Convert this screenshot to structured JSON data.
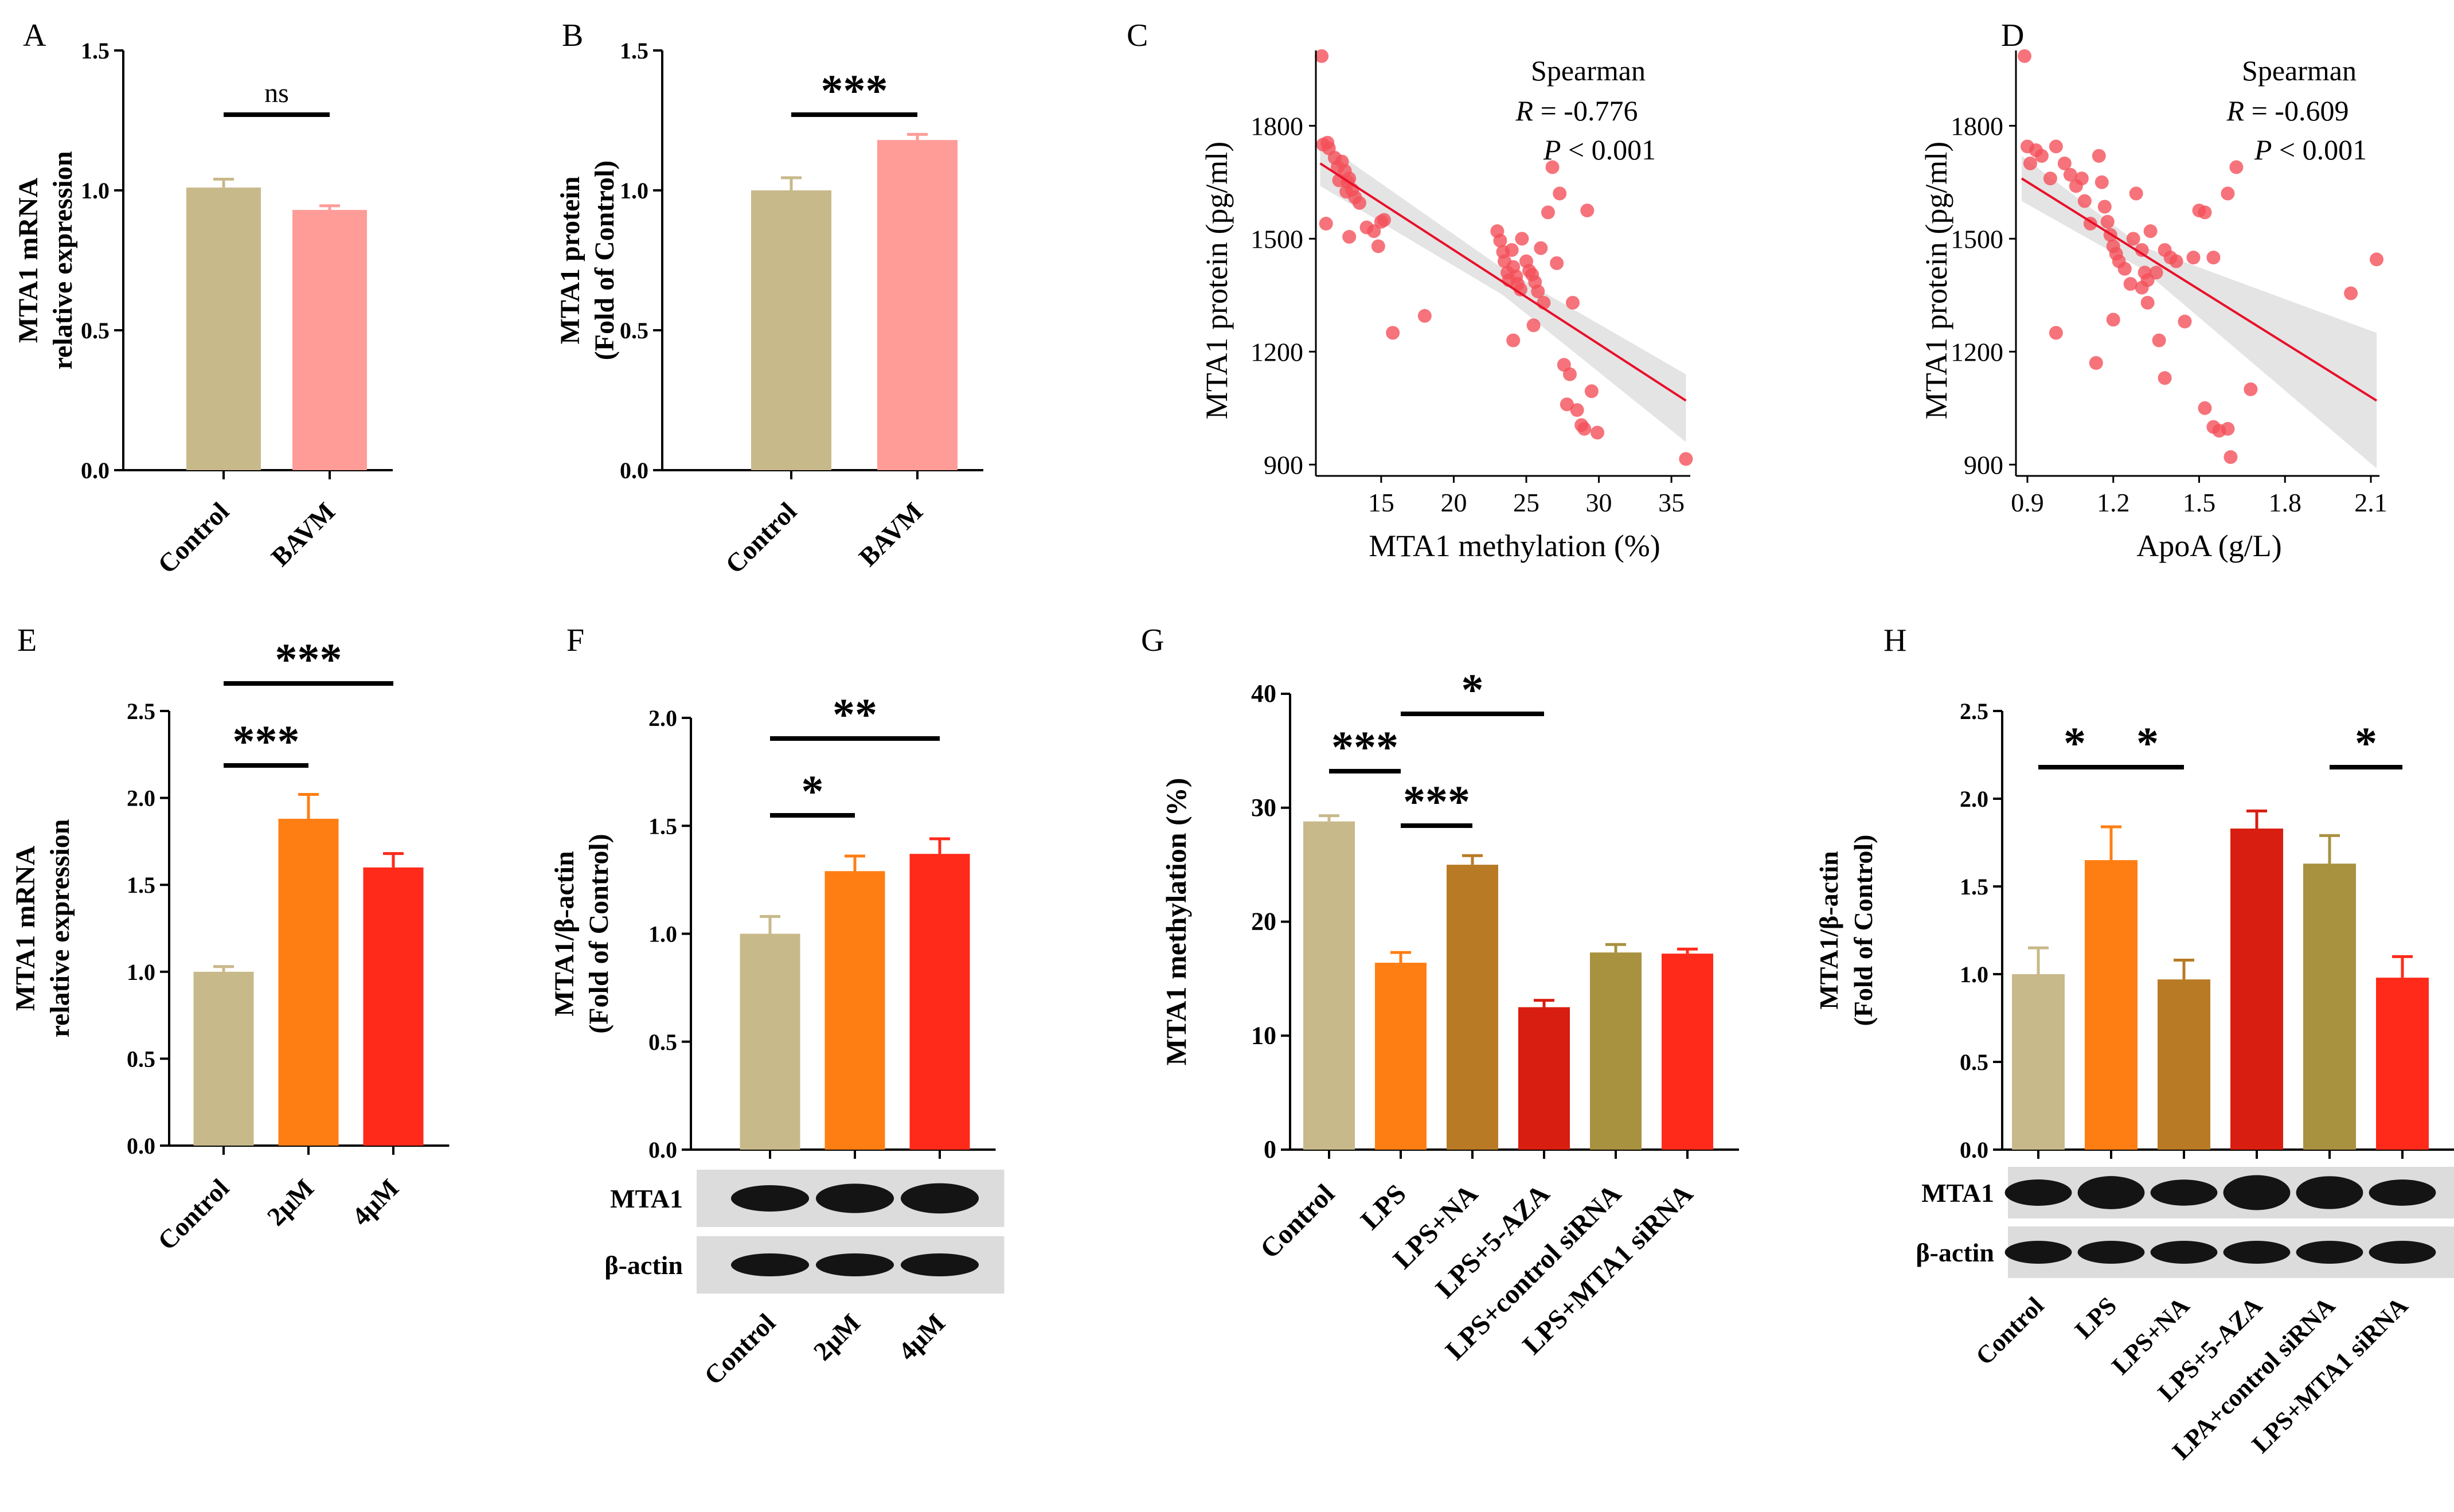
{
  "chart_data": [
    {
      "panel": "A",
      "type": "bar",
      "categories": [
        "Control",
        "BAVM"
      ],
      "values": [
        1.01,
        0.93
      ],
      "errors": [
        0.03,
        0.015
      ],
      "colors": [
        "#c8b98a",
        "#ff9c97"
      ],
      "ylabel": [
        "MTA1 mRNA",
        "relative expression"
      ],
      "ylim": [
        0,
        1.5
      ],
      "yticks": [
        "0.0",
        "0.5",
        "1.0",
        "1.5"
      ],
      "significance": [
        {
          "from": 0,
          "to": 1,
          "label": "ns"
        }
      ]
    },
    {
      "panel": "B",
      "type": "bar",
      "categories": [
        "Control",
        "BAVM"
      ],
      "values": [
        1.0,
        1.18
      ],
      "errors": [
        0.045,
        0.02
      ],
      "colors": [
        "#c8b98a",
        "#ff9c97"
      ],
      "ylabel": [
        "MTA1 protein",
        "(Fold of Control)"
      ],
      "ylim": [
        0,
        1.5
      ],
      "yticks": [
        "0.0",
        "0.5",
        "1.0",
        "1.5"
      ],
      "significance": [
        {
          "from": 0,
          "to": 1,
          "label": "***"
        }
      ]
    },
    {
      "panel": "C",
      "type": "scatter",
      "xlabel": "MTA1 methylation (%)",
      "ylabel": "MTA1 protein (pg/ml)",
      "xlim": [
        10.5,
        36.3
      ],
      "ylim": [
        870,
        2000
      ],
      "xticks": [
        15,
        20,
        25,
        30,
        35
      ],
      "yticks": [
        900,
        1200,
        1500,
        1800
      ],
      "annotation": [
        "Spearman",
        "R = -0.776",
        "P < 0.001"
      ],
      "fit": {
        "x": [
          10.8,
          36
        ],
        "y": [
          1700,
          1070
        ]
      },
      "ci": {
        "x": [
          10.8,
          23.4,
          36
        ],
        "upper": [
          1760,
          1420,
          1140
        ],
        "lower": [
          1640,
          1350,
          960
        ]
      },
      "points": [
        [
          10.9,
          1985
        ],
        [
          11.0,
          1750
        ],
        [
          11.3,
          1755
        ],
        [
          11.4,
          1740
        ],
        [
          11.8,
          1715
        ],
        [
          12.0,
          1690
        ],
        [
          12.1,
          1655
        ],
        [
          12.3,
          1705
        ],
        [
          12.5,
          1680
        ],
        [
          12.6,
          1625
        ],
        [
          12.7,
          1650
        ],
        [
          12.8,
          1660
        ],
        [
          13.0,
          1630
        ],
        [
          13.2,
          1610
        ],
        [
          13.5,
          1595
        ],
        [
          11.2,
          1540
        ],
        [
          12.8,
          1505
        ],
        [
          14.0,
          1530
        ],
        [
          14.5,
          1520
        ],
        [
          15.0,
          1545
        ],
        [
          15.2,
          1550
        ],
        [
          14.8,
          1480
        ],
        [
          15.8,
          1250
        ],
        [
          18.0,
          1295
        ],
        [
          23.0,
          1520
        ],
        [
          23.2,
          1495
        ],
        [
          23.4,
          1465
        ],
        [
          23.5,
          1440
        ],
        [
          23.7,
          1410
        ],
        [
          23.8,
          1390
        ],
        [
          24.0,
          1470
        ],
        [
          24.1,
          1425
        ],
        [
          24.3,
          1400
        ],
        [
          24.4,
          1380
        ],
        [
          24.6,
          1365
        ],
        [
          24.7,
          1500
        ],
        [
          25.0,
          1440
        ],
        [
          25.2,
          1415
        ],
        [
          25.4,
          1405
        ],
        [
          25.6,
          1385
        ],
        [
          25.8,
          1360
        ],
        [
          26.0,
          1475
        ],
        [
          26.5,
          1570
        ],
        [
          26.8,
          1690
        ],
        [
          27.3,
          1620
        ],
        [
          27.1,
          1435
        ],
        [
          26.2,
          1330
        ],
        [
          24.1,
          1230
        ],
        [
          25.5,
          1270
        ],
        [
          27.6,
          1165
        ],
        [
          28.2,
          1330
        ],
        [
          29.2,
          1575
        ],
        [
          28.0,
          1140
        ],
        [
          28.5,
          1045
        ],
        [
          28.8,
          1005
        ],
        [
          29.0,
          995
        ],
        [
          29.5,
          1095
        ],
        [
          29.9,
          985
        ],
        [
          27.8,
          1060
        ],
        [
          36.0,
          915
        ]
      ]
    },
    {
      "panel": "D",
      "type": "scatter",
      "xlabel": "ApoA (g/L)",
      "ylabel": "MTA1 protein (pg/ml)",
      "xlim": [
        0.86,
        2.13
      ],
      "ylim": [
        870,
        2000
      ],
      "xticks": [
        "0.9",
        "1.2",
        "1.5",
        "1.8",
        "2.1"
      ],
      "yticks": [
        900,
        1200,
        1500,
        1800
      ],
      "annotation": [
        "Spearman",
        "R = -0.609",
        "P < 0.001"
      ],
      "fit": {
        "x": [
          0.88,
          2.12
        ],
        "y": [
          1660,
          1070
        ]
      },
      "ci": {
        "x": [
          0.88,
          1.3,
          2.12
        ],
        "upper": [
          1720,
          1480,
          1250
        ],
        "lower": [
          1600,
          1420,
          890
        ]
      },
      "points": [
        [
          0.89,
          1985
        ],
        [
          0.9,
          1745
        ],
        [
          0.91,
          1700
        ],
        [
          0.93,
          1735
        ],
        [
          0.95,
          1720
        ],
        [
          0.98,
          1660
        ],
        [
          1.0,
          1745
        ],
        [
          1.03,
          1700
        ],
        [
          1.05,
          1670
        ],
        [
          1.07,
          1640
        ],
        [
          1.09,
          1660
        ],
        [
          1.1,
          1600
        ],
        [
          1.12,
          1540
        ],
        [
          1.15,
          1720
        ],
        [
          1.16,
          1650
        ],
        [
          1.17,
          1585
        ],
        [
          1.18,
          1545
        ],
        [
          1.19,
          1510
        ],
        [
          1.2,
          1480
        ],
        [
          1.21,
          1460
        ],
        [
          1.22,
          1440
        ],
        [
          1.24,
          1420
        ],
        [
          1.26,
          1380
        ],
        [
          1.27,
          1500
        ],
        [
          1.28,
          1620
        ],
        [
          1.3,
          1470
        ],
        [
          1.31,
          1410
        ],
        [
          1.32,
          1390
        ],
        [
          1.33,
          1520
        ],
        [
          1.35,
          1410
        ],
        [
          1.38,
          1470
        ],
        [
          1.4,
          1450
        ],
        [
          1.42,
          1440
        ],
        [
          1.45,
          1280
        ],
        [
          1.3,
          1370
        ],
        [
          1.32,
          1330
        ],
        [
          1.36,
          1230
        ],
        [
          1.2,
          1285
        ],
        [
          1.14,
          1170
        ],
        [
          1.0,
          1250
        ],
        [
          1.38,
          1130
        ],
        [
          1.5,
          1575
        ],
        [
          1.52,
          1570
        ],
        [
          1.48,
          1450
        ],
        [
          1.55,
          1450
        ],
        [
          1.6,
          1620
        ],
        [
          1.63,
          1690
        ],
        [
          1.68,
          1100
        ],
        [
          1.52,
          1050
        ],
        [
          1.55,
          1000
        ],
        [
          1.57,
          990
        ],
        [
          1.6,
          995
        ],
        [
          1.61,
          920
        ],
        [
          2.03,
          1355
        ],
        [
          2.12,
          1445
        ]
      ]
    },
    {
      "panel": "E",
      "type": "bar",
      "categories": [
        "Control",
        "2μM",
        "4μM"
      ],
      "values": [
        1.0,
        1.88,
        1.6
      ],
      "errors": [
        0.03,
        0.14,
        0.08
      ],
      "colors": [
        "#c8b98a",
        "#ff7e13",
        "#ff2a1a"
      ],
      "ylabel": [
        "MTA1 mRNA",
        "relative expression"
      ],
      "ylim": [
        0,
        2.5
      ],
      "yticks": [
        "0.0",
        "0.5",
        "1.0",
        "1.5",
        "2.0",
        "2.5"
      ],
      "significance": [
        {
          "from": 0,
          "to": 1,
          "label": "***"
        },
        {
          "from": 0,
          "to": 2,
          "label": "***"
        }
      ]
    },
    {
      "panel": "F",
      "type": "bar",
      "categories": [
        "Control",
        "2μM",
        "4μM"
      ],
      "values": [
        1.0,
        1.29,
        1.37
      ],
      "errors": [
        0.08,
        0.07,
        0.07
      ],
      "colors": [
        "#c8b98a",
        "#ff7e13",
        "#ff2a1a"
      ],
      "ylabel": [
        "MTA1/β-actin",
        "(Fold of Control)"
      ],
      "ylim": [
        0,
        2.0
      ],
      "yticks": [
        "0.0",
        "0.5",
        "1.0",
        "1.5",
        "2.0"
      ],
      "significance": [
        {
          "from": 0,
          "to": 1,
          "label": "*"
        },
        {
          "from": 0,
          "to": 2,
          "label": "**"
        }
      ],
      "blot_rows": [
        "MTA1",
        "β-actin"
      ]
    },
    {
      "panel": "G",
      "type": "bar",
      "categories": [
        "Control",
        "LPS",
        "LPS+NA",
        "LPS+5-AZA",
        "LPS+control siRNA",
        "LPS+MTA1 siRNA"
      ],
      "values": [
        28.8,
        16.4,
        25.0,
        12.5,
        17.3,
        17.2
      ],
      "errors": [
        0.5,
        0.9,
        0.8,
        0.6,
        0.7,
        0.4
      ],
      "colors": [
        "#c8b98a",
        "#ff7e13",
        "#b87a24",
        "#d81e10",
        "#a8913f",
        "#ff2a1a"
      ],
      "ylabel": [
        "MTA1 methylation (%)"
      ],
      "ylim": [
        0,
        40
      ],
      "yticks": [
        "0",
        "10",
        "20",
        "30",
        "40"
      ],
      "significance": [
        {
          "from": 0,
          "to": 1,
          "label": "***"
        },
        {
          "from": 1,
          "to": 2,
          "label": "***"
        },
        {
          "from": 1,
          "to": 3,
          "label": "*"
        }
      ]
    },
    {
      "panel": "H",
      "type": "bar",
      "categories": [
        "Control",
        "LPS",
        "LPS+NA",
        "LPS+5-AZA",
        "LPA+control siRNA",
        "LPS+MTA1 siRNA"
      ],
      "values": [
        1.0,
        1.65,
        0.97,
        1.83,
        1.63,
        0.98
      ],
      "errors": [
        0.15,
        0.19,
        0.11,
        0.1,
        0.16,
        0.12
      ],
      "colors": [
        "#c8b98a",
        "#ff7e13",
        "#b87a24",
        "#d81e10",
        "#a8913f",
        "#ff2a1a"
      ],
      "ylabel": [
        "MTA1/β-actin",
        "(Fold of Control)"
      ],
      "ylim": [
        0,
        2.5
      ],
      "yticks": [
        "0.0",
        "0.5",
        "1.0",
        "1.5",
        "2.0",
        "2.5"
      ],
      "significance": [
        {
          "from": 0,
          "to": 1,
          "label": "*"
        },
        {
          "from": 1,
          "to": 2,
          "label": "*"
        },
        {
          "from": 4,
          "to": 5,
          "label": "*"
        }
      ],
      "blot_rows": [
        "MTA1",
        "β-actin"
      ]
    }
  ]
}
